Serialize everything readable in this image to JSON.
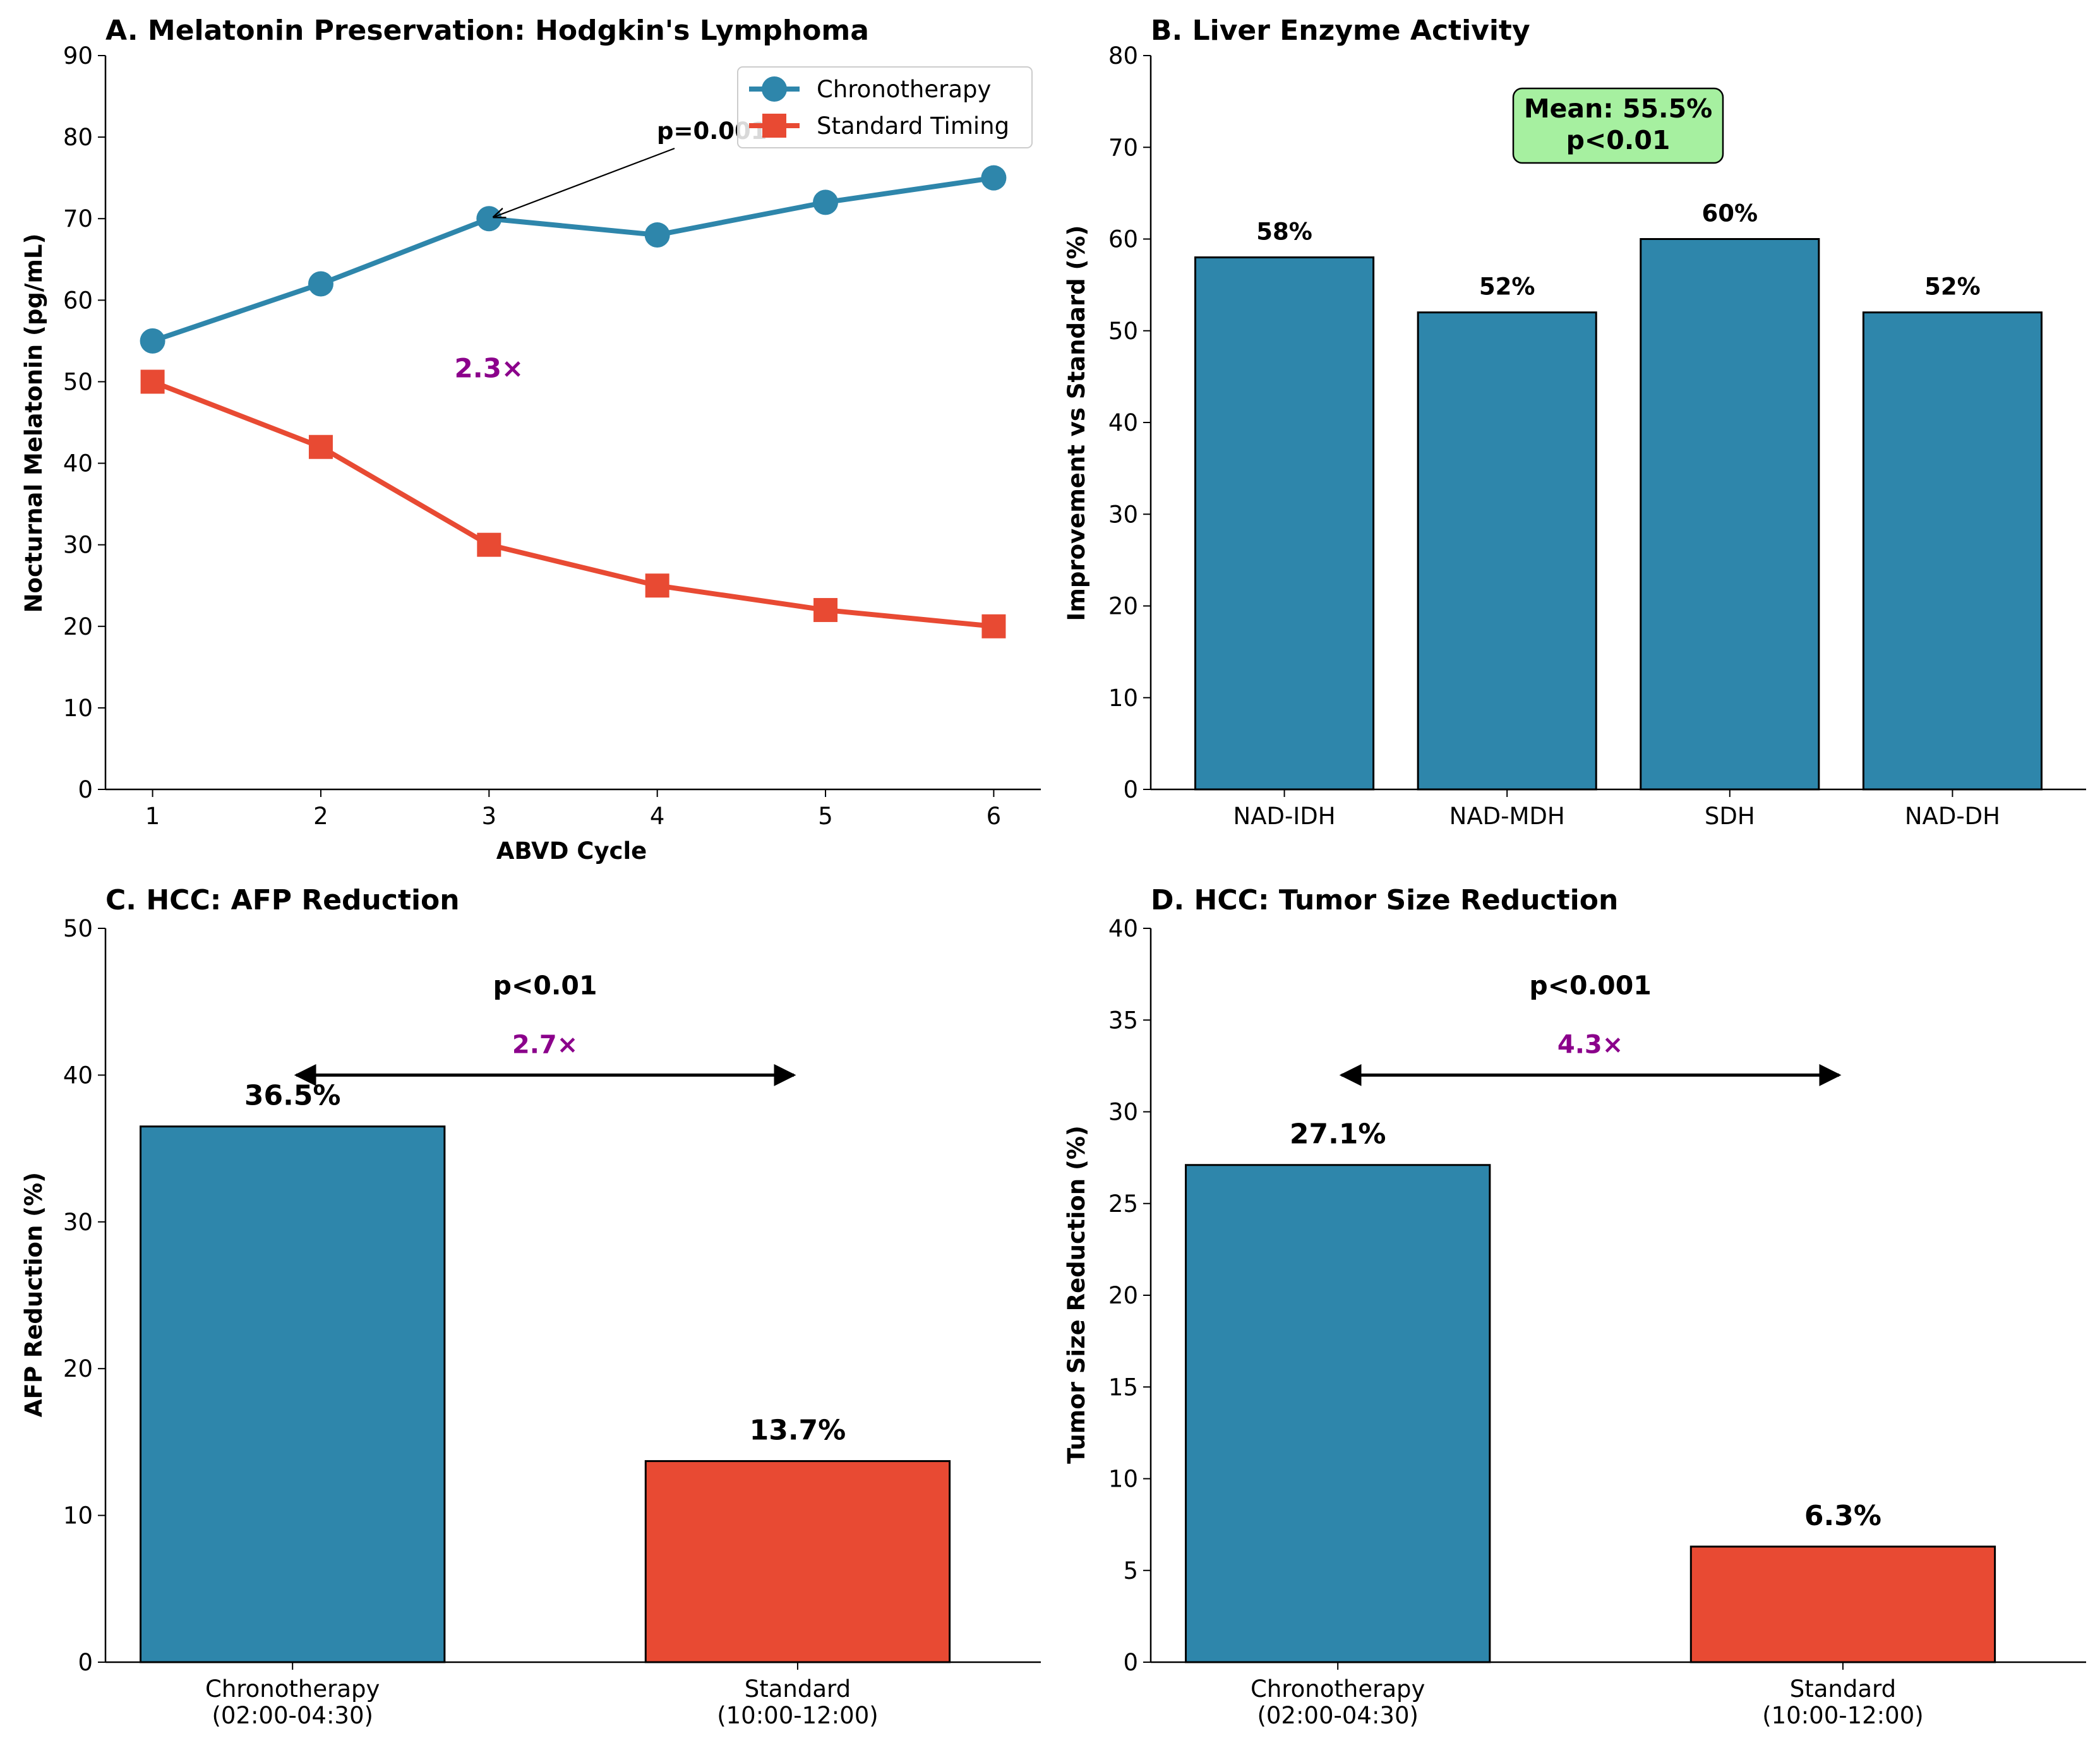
{
  "chart_data": [
    {
      "type": "line",
      "title": "A. Melatonin Preservation: Hodgkin's Lymphoma",
      "xlabel": "ABVD Cycle",
      "ylabel": "Nocturnal Melatonin (pg/mL)",
      "x": [
        1,
        2,
        3,
        4,
        5,
        6
      ],
      "xlim": [
        0.72,
        6.28
      ],
      "ylim": [
        0,
        90
      ],
      "yticks": [
        0,
        10,
        20,
        30,
        40,
        50,
        60,
        70,
        80,
        90
      ],
      "legend_position": "top-right",
      "series": [
        {
          "name": "Chronotherapy",
          "values": [
            55,
            62,
            70,
            68,
            72,
            75
          ],
          "color": "#2e86ab",
          "marker": "circle"
        },
        {
          "name": "Standard Timing",
          "values": [
            50,
            42,
            30,
            25,
            22,
            20
          ],
          "color": "#e84a33",
          "marker": "square"
        }
      ],
      "annotations": [
        {
          "text": "p=0.001",
          "arrow_to": [
            3,
            70
          ],
          "text_at": [
            4.0,
            81
          ],
          "color": "#000000"
        },
        {
          "text": "2.3×",
          "at": [
            3,
            51
          ],
          "color": "#8b008b"
        }
      ]
    },
    {
      "type": "bar",
      "title": "B. Liver Enzyme Activity",
      "xlabel": "",
      "ylabel": "Improvement vs Standard (%)",
      "categories": [
        "NAD-IDH",
        "NAD-MDH",
        "SDH",
        "NAD-DH"
      ],
      "values": [
        58,
        52,
        60,
        52
      ],
      "value_labels": [
        "58%",
        "52%",
        "60%",
        "52%"
      ],
      "ylim": [
        0,
        80
      ],
      "yticks": [
        0,
        10,
        20,
        30,
        40,
        50,
        60,
        70,
        80
      ],
      "bar_color": "#2e86ab",
      "annotation_box": {
        "lines": [
          "Mean: 55.5%",
          "p<0.01"
        ],
        "fill": "#a6f0a0"
      }
    },
    {
      "type": "bar",
      "title": "C. HCC: AFP Reduction",
      "xlabel": "",
      "ylabel": "AFP Reduction (%)",
      "categories": [
        [
          "Chronotherapy",
          "(02:00-04:30)"
        ],
        [
          "Standard",
          "(10:00-12:00)"
        ]
      ],
      "values": [
        36.5,
        13.7
      ],
      "value_labels": [
        "36.5%",
        "13.7%"
      ],
      "bar_colors": [
        "#2e86ab",
        "#e84a33"
      ],
      "ylim": [
        0,
        50
      ],
      "yticks": [
        0,
        10,
        20,
        30,
        40,
        50
      ],
      "significance": "p<0.01",
      "ratio": "2.7×",
      "ratio_color": "#8b008b",
      "arrow_y": 40,
      "sig_y": 45.5,
      "ratio_y": 41.5
    },
    {
      "type": "bar",
      "title": "D. HCC: Tumor Size Reduction",
      "xlabel": "",
      "ylabel": "Tumor Size Reduction (%)",
      "categories": [
        [
          "Chronotherapy",
          "(02:00-04:30)"
        ],
        [
          "Standard",
          "(10:00-12:00)"
        ]
      ],
      "values": [
        27.1,
        6.3
      ],
      "value_labels": [
        "27.1%",
        "6.3%"
      ],
      "bar_colors": [
        "#2e86ab",
        "#e84a33"
      ],
      "ylim": [
        0,
        40
      ],
      "yticks": [
        0,
        5,
        10,
        15,
        20,
        25,
        30,
        35,
        40
      ],
      "significance": "p<0.001",
      "ratio": "4.3×",
      "ratio_color": "#8b008b",
      "arrow_y": 32,
      "sig_y": 36.4,
      "ratio_y": 33.2
    }
  ]
}
